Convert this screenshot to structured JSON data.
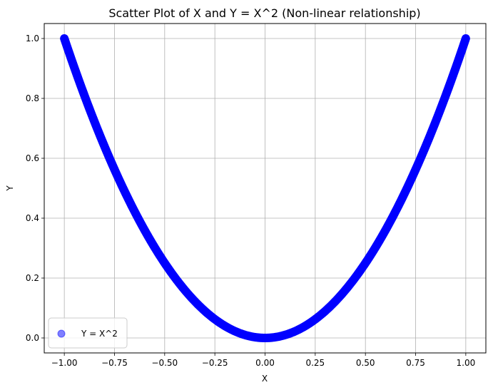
{
  "chart_data": {
    "type": "scatter",
    "title": "Scatter Plot of X and Y = X^2 (Non-linear relationship)",
    "xlabel": "X",
    "ylabel": "Y",
    "xlim": [
      -1.1,
      1.1
    ],
    "ylim": [
      -0.05,
      1.05
    ],
    "x_ticks": [
      -1.0,
      -0.75,
      -0.5,
      -0.25,
      0.0,
      0.25,
      0.5,
      0.75,
      1.0
    ],
    "x_tick_labels": [
      "−1.00",
      "−0.75",
      "−0.50",
      "−0.25",
      "0.00",
      "0.25",
      "0.50",
      "0.75",
      "1.00"
    ],
    "y_ticks": [
      0.0,
      0.2,
      0.4,
      0.6,
      0.8,
      1.0
    ],
    "y_tick_labels": [
      "0.0",
      "0.2",
      "0.4",
      "0.6",
      "0.8",
      "1.0"
    ],
    "grid": true,
    "legend_position": "lower-left",
    "series": [
      {
        "name": "Y = X^2",
        "color": "#0000ff",
        "alpha": 0.5,
        "x": [
          -1.0,
          -0.95,
          -0.9,
          -0.85,
          -0.8,
          -0.75,
          -0.7,
          -0.65,
          -0.6,
          -0.55,
          -0.5,
          -0.45,
          -0.4,
          -0.35,
          -0.3,
          -0.25,
          -0.2,
          -0.15,
          -0.1,
          -0.05,
          0.0,
          0.05,
          0.1,
          0.15,
          0.2,
          0.25,
          0.3,
          0.35,
          0.4,
          0.45,
          0.5,
          0.55,
          0.6,
          0.65,
          0.7,
          0.75,
          0.8,
          0.85,
          0.9,
          0.95,
          1.0
        ],
        "y": [
          1.0,
          0.9025,
          0.81,
          0.7225,
          0.64,
          0.5625,
          0.49,
          0.4225,
          0.36,
          0.3025,
          0.25,
          0.2025,
          0.16,
          0.1225,
          0.09,
          0.0625,
          0.04,
          0.0225,
          0.01,
          0.0025,
          0.0,
          0.0025,
          0.01,
          0.0225,
          0.04,
          0.0625,
          0.09,
          0.1225,
          0.16,
          0.2025,
          0.25,
          0.3025,
          0.36,
          0.4225,
          0.49,
          0.5625,
          0.64,
          0.7225,
          0.81,
          0.9025,
          1.0
        ]
      }
    ]
  }
}
